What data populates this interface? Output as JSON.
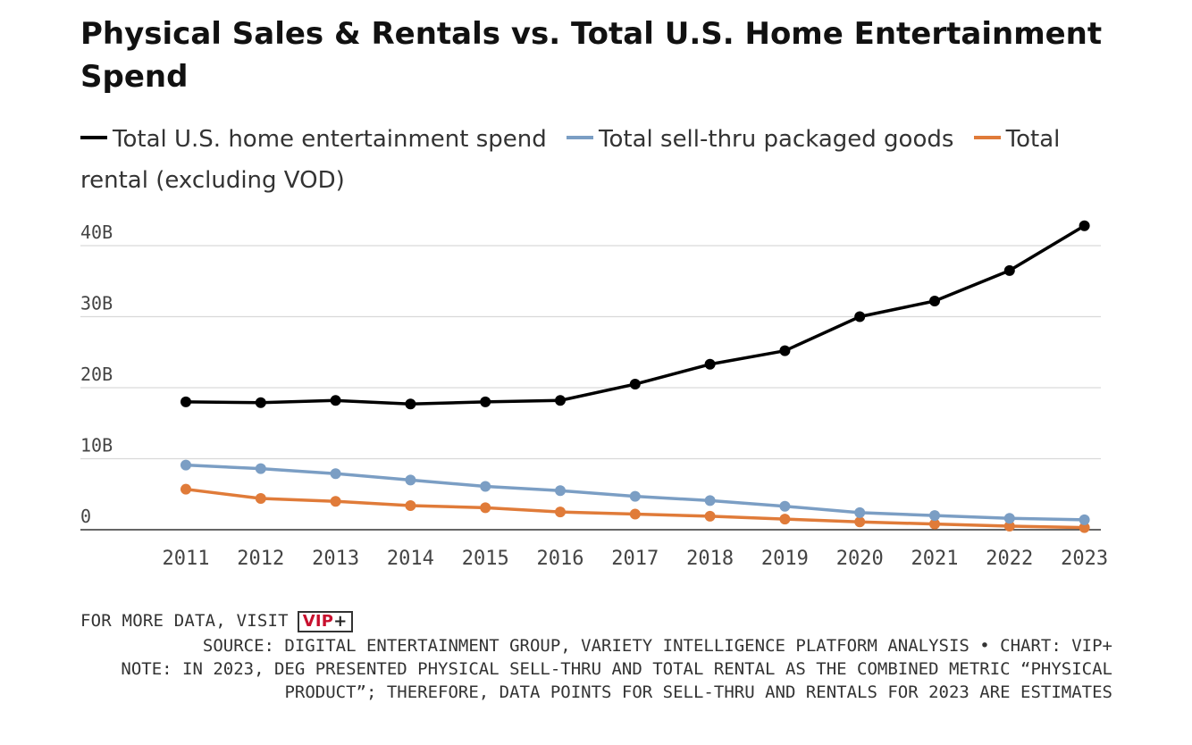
{
  "title": "Physical Sales & Rentals vs. Total U.S. Home Entertainment Spend",
  "legend": [
    {
      "label": "Total U.S. home entertainment spend",
      "color": "#000000"
    },
    {
      "label": "Total sell-thru packaged goods",
      "color": "#7b9ec4"
    },
    {
      "label": "Total rental (excluding VOD)",
      "color": "#e07b39"
    }
  ],
  "chart_data": {
    "type": "line",
    "title": "Physical Sales & Rentals vs. Total U.S. Home Entertainment Spend",
    "x": [
      2011,
      2012,
      2013,
      2014,
      2015,
      2016,
      2017,
      2018,
      2019,
      2020,
      2021,
      2022,
      2023
    ],
    "ylim": [
      0,
      40
    ],
    "yticks": [
      0,
      10,
      20,
      30,
      40
    ],
    "ytick_labels": [
      "0",
      "10B",
      "20B",
      "30B",
      "40B"
    ],
    "grid": true,
    "legend_position": "top",
    "series": [
      {
        "name": "Total U.S. home entertainment spend",
        "color": "#000000",
        "values": [
          18.0,
          17.9,
          18.2,
          17.7,
          18.0,
          18.2,
          20.5,
          23.3,
          25.2,
          30.0,
          32.2,
          36.5,
          42.8
        ]
      },
      {
        "name": "Total sell-thru packaged goods",
        "color": "#7b9ec4",
        "values": [
          9.1,
          8.6,
          7.9,
          7.0,
          6.1,
          5.5,
          4.7,
          4.1,
          3.3,
          2.4,
          2.0,
          1.6,
          1.4
        ]
      },
      {
        "name": "Total rental (excluding VOD)",
        "color": "#e07b39",
        "values": [
          5.7,
          4.4,
          4.0,
          3.4,
          3.1,
          2.5,
          2.2,
          1.9,
          1.5,
          1.1,
          0.8,
          0.5,
          0.3
        ]
      }
    ]
  },
  "footer": {
    "visit_text": "FOR MORE DATA, VISIT",
    "logo_text": "VIP",
    "logo_plus": "+",
    "source": "SOURCE: DIGITAL ENTERTAINMENT GROUP, VARIETY INTELLIGENCE PLATFORM ANALYSIS • CHART: VIP+",
    "note": "NOTE: IN 2023, DEG PRESENTED PHYSICAL SELL-THRU AND TOTAL RENTAL AS THE COMBINED METRIC “PHYSICAL PRODUCT”; THEREFORE, DATA POINTS FOR SELL-THRU AND RENTALS FOR 2023 ARE ESTIMATES"
  }
}
